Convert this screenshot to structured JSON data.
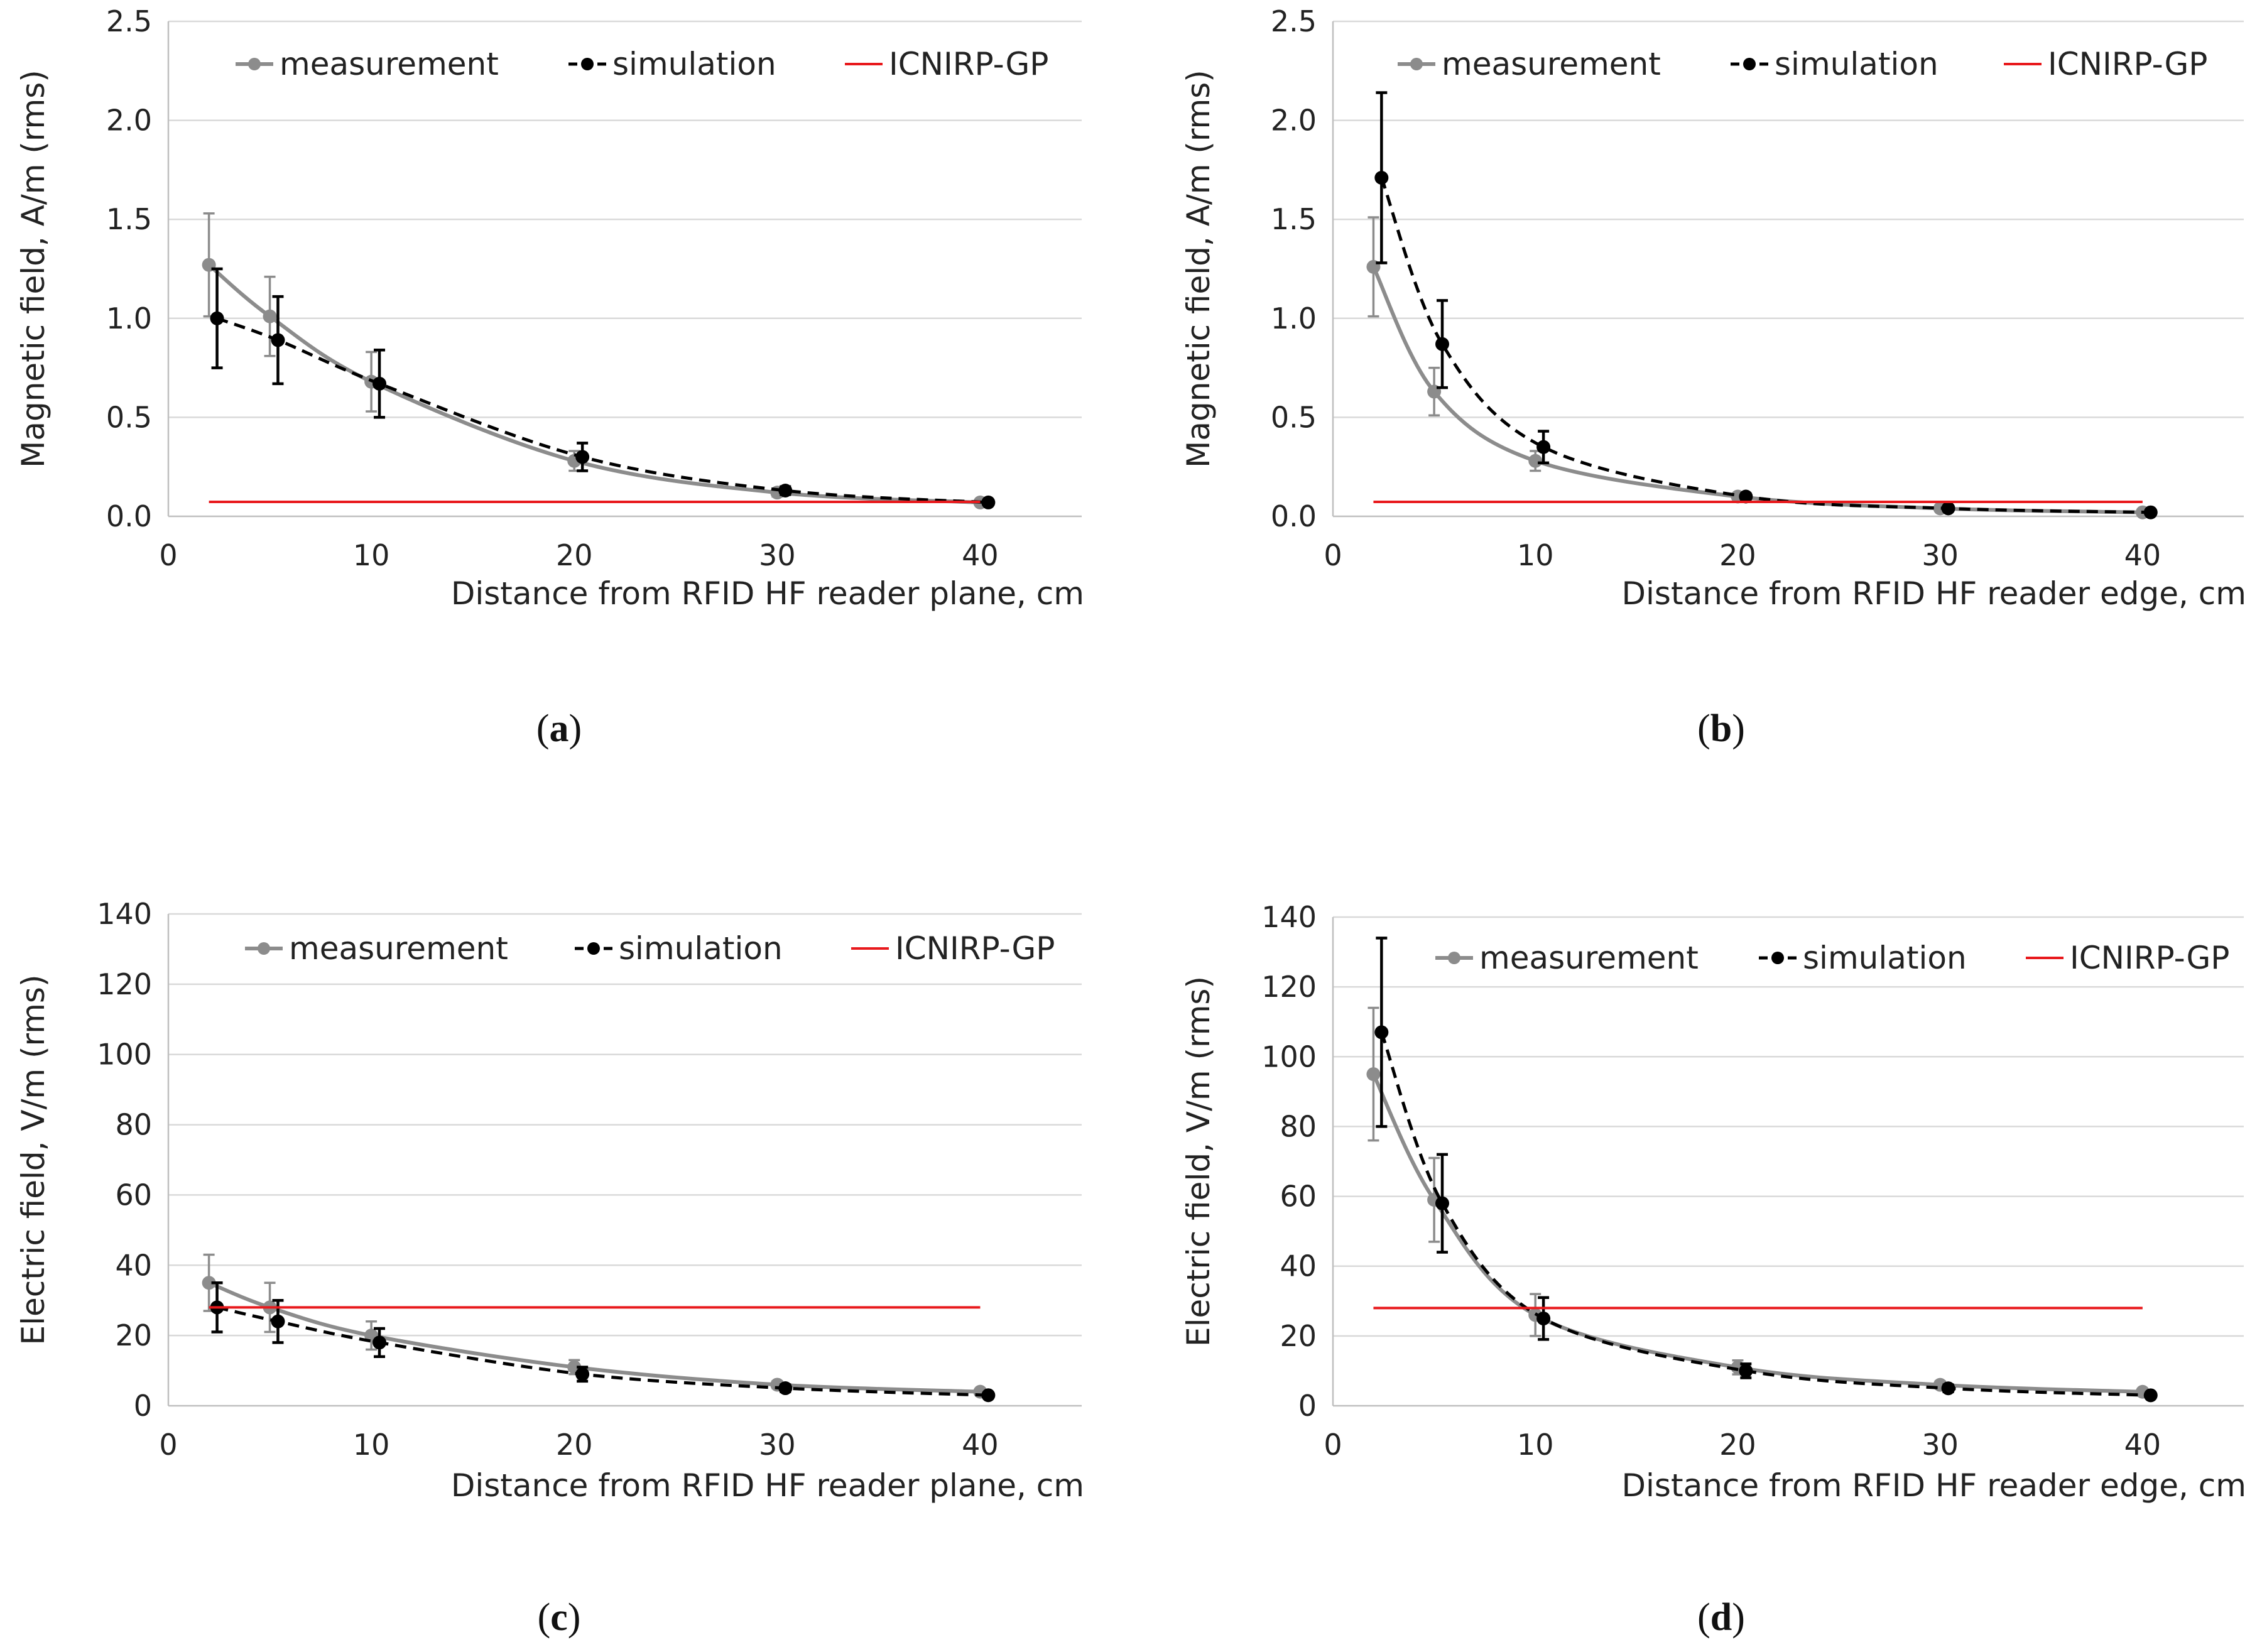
{
  "colors": {
    "measurement": "#8c8c8c",
    "simulation": "#000000",
    "reference": "#e8191c",
    "grid": "#d9d9d9"
  },
  "chart_data": [
    {
      "id": "a",
      "type": "line",
      "panel_label": "a",
      "xlabel": "Distance from RFID HF reader plane, cm",
      "ylabel": "Magnetic field, A/m (rms)",
      "xlim": [
        0,
        45
      ],
      "ylim": [
        0,
        2.5
      ],
      "xticks": [
        0,
        10,
        20,
        30,
        40
      ],
      "xtick_labels": [
        "0",
        "10",
        "20",
        "30",
        "40"
      ],
      "yticks": [
        0,
        0.5,
        1.0,
        1.5,
        2.0,
        2.5
      ],
      "ytick_labels": [
        "0.0",
        "0.5",
        "1.0",
        "1.5",
        "2.0",
        "2.5"
      ],
      "grid": true,
      "legend": [
        "measurement",
        "simulation",
        "ICNIRP-GP"
      ],
      "series": [
        {
          "name": "measurement",
          "style": "solid",
          "x": [
            2,
            5,
            10,
            20,
            30,
            40
          ],
          "y": [
            1.27,
            1.01,
            0.68,
            0.28,
            0.12,
            0.07
          ],
          "err": [
            0.26,
            0.2,
            0.15,
            0.05,
            0.02,
            0.01
          ]
        },
        {
          "name": "simulation",
          "style": "dashed",
          "x": [
            2.4,
            5.4,
            10.4,
            20.4,
            30.4,
            40.4
          ],
          "y": [
            1.0,
            0.89,
            0.67,
            0.3,
            0.13,
            0.07
          ],
          "err": [
            0.25,
            0.22,
            0.17,
            0.07,
            0.02,
            0.01
          ]
        },
        {
          "name": "ICNIRP-GP",
          "style": "reference",
          "x": [
            2,
            40
          ],
          "y": [
            0.073,
            0.073
          ],
          "err": [
            0,
            0
          ]
        }
      ]
    },
    {
      "id": "b",
      "type": "line",
      "panel_label": "b",
      "xlabel": "Distance from RFID HF reader edge, cm",
      "ylabel": "Magnetic field, A/m (rms)",
      "xlim": [
        0,
        45
      ],
      "ylim": [
        0,
        2.5
      ],
      "xticks": [
        0,
        10,
        20,
        30,
        40
      ],
      "xtick_labels": [
        "0",
        "10",
        "20",
        "30",
        "40"
      ],
      "yticks": [
        0,
        0.5,
        1.0,
        1.5,
        2.0,
        2.5
      ],
      "ytick_labels": [
        "0.0",
        "0.5",
        "1.0",
        "1.5",
        "2.0",
        "2.5"
      ],
      "grid": true,
      "legend": [
        "measurement",
        "simulation",
        "ICNIRP-GP"
      ],
      "series": [
        {
          "name": "measurement",
          "style": "solid",
          "x": [
            2,
            5,
            10,
            20,
            30,
            40
          ],
          "y": [
            1.26,
            0.63,
            0.28,
            0.1,
            0.04,
            0.02
          ],
          "err": [
            0.25,
            0.12,
            0.05,
            0.01,
            0.005,
            0.003
          ]
        },
        {
          "name": "simulation",
          "style": "dashed",
          "x": [
            2.4,
            5.4,
            10.4,
            20.4,
            30.4,
            40.4
          ],
          "y": [
            1.71,
            0.87,
            0.35,
            0.1,
            0.04,
            0.02
          ],
          "err": [
            0.43,
            0.22,
            0.08,
            0.015,
            0.005,
            0.003
          ]
        },
        {
          "name": "ICNIRP-GP",
          "style": "reference",
          "x": [
            2,
            40
          ],
          "y": [
            0.073,
            0.073
          ],
          "err": [
            0,
            0
          ]
        }
      ]
    },
    {
      "id": "c",
      "type": "line",
      "panel_label": "c",
      "xlabel": "Distance from RFID HF reader plane, cm",
      "ylabel": "Electric field, V/m (rms)",
      "xlim": [
        0,
        45
      ],
      "ylim": [
        0,
        140
      ],
      "xticks": [
        0,
        10,
        20,
        30,
        40
      ],
      "xtick_labels": [
        "0",
        "10",
        "20",
        "30",
        "40"
      ],
      "yticks": [
        0,
        20,
        40,
        60,
        80,
        100,
        120,
        140
      ],
      "ytick_labels": [
        "0",
        "20",
        "40",
        "60",
        "80",
        "100",
        "120",
        "140"
      ],
      "grid": true,
      "legend": [
        "measurement",
        "simulation",
        "ICNIRP-GP"
      ],
      "series": [
        {
          "name": "measurement",
          "style": "solid",
          "x": [
            2,
            5,
            10,
            20,
            30,
            40
          ],
          "y": [
            35,
            28,
            20,
            11,
            6,
            4
          ],
          "err": [
            8,
            7,
            4,
            2,
            1,
            0.5
          ]
        },
        {
          "name": "simulation",
          "style": "dashed",
          "x": [
            2.4,
            5.4,
            10.4,
            20.4,
            30.4,
            40.4
          ],
          "y": [
            28,
            24,
            18,
            9,
            5,
            3
          ],
          "err": [
            7,
            6,
            4,
            2,
            1,
            0.5
          ]
        },
        {
          "name": "ICNIRP-GP",
          "style": "reference",
          "x": [
            2,
            40
          ],
          "y": [
            28,
            28
          ],
          "err": [
            0,
            0
          ]
        }
      ]
    },
    {
      "id": "d",
      "type": "line",
      "panel_label": "d",
      "xlabel": "Distance from RFID HF reader edge, cm",
      "ylabel": "Electric field, V/m (rms)",
      "xlim": [
        0,
        45
      ],
      "ylim": [
        0,
        140
      ],
      "xticks": [
        0,
        10,
        20,
        30,
        40
      ],
      "xtick_labels": [
        "0",
        "10",
        "20",
        "30",
        "40"
      ],
      "yticks": [
        0,
        20,
        40,
        60,
        80,
        100,
        120,
        140
      ],
      "ytick_labels": [
        "0",
        "20",
        "40",
        "60",
        "80",
        "100",
        "120",
        "140"
      ],
      "grid": true,
      "legend": [
        "measurement",
        "simulation",
        "ICNIRP-GP"
      ],
      "series": [
        {
          "name": "measurement",
          "style": "solid",
          "x": [
            2,
            5,
            10,
            20,
            30,
            40
          ],
          "y": [
            95,
            59,
            26,
            11,
            6,
            4
          ],
          "err": [
            19,
            12,
            6,
            2,
            1,
            0.5
          ]
        },
        {
          "name": "simulation",
          "style": "dashed",
          "x": [
            2.4,
            5.4,
            10.4,
            20.4,
            30.4,
            40.4
          ],
          "y": [
            107,
            58,
            25,
            10,
            5,
            3
          ],
          "err": [
            27,
            14,
            6,
            2,
            1,
            0.5
          ]
        },
        {
          "name": "ICNIRP-GP",
          "style": "reference",
          "x": [
            2,
            40
          ],
          "y": [
            28,
            28
          ],
          "err": [
            0,
            0
          ]
        }
      ]
    }
  ]
}
